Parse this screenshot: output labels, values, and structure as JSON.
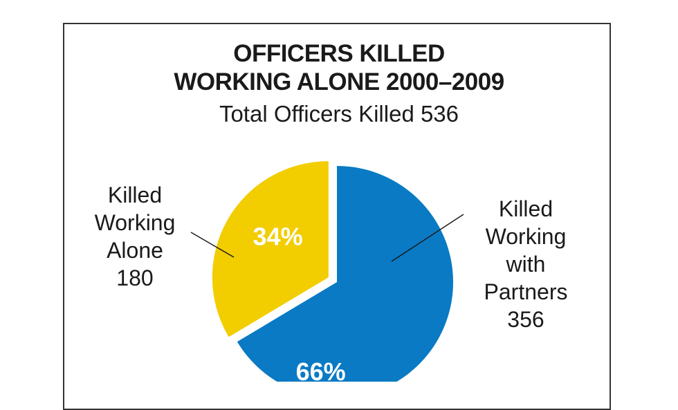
{
  "chart_data": {
    "type": "pie",
    "title_lines": [
      "OFFICERS KILLED",
      "WORKING ALONE 2000–2009"
    ],
    "subtitle": "Total Officers Killed 536",
    "slices": [
      {
        "label_lines": [
          "Killed",
          "Working",
          "Alone"
        ],
        "value": 180,
        "value_text": "180",
        "percent": 34,
        "percent_text": "34%",
        "color": "#F2CD00",
        "exploded": true
      },
      {
        "label_lines": [
          "Killed",
          "Working",
          "with",
          "Partners"
        ],
        "value": 356,
        "value_text": "356",
        "percent": 66,
        "percent_text": "66%",
        "color": "#0A7AC4",
        "exploded": false
      }
    ],
    "percent_label_color": "#FFFFFF",
    "leader_line_color": "#1a1a1a",
    "frame_color": "#333333"
  }
}
